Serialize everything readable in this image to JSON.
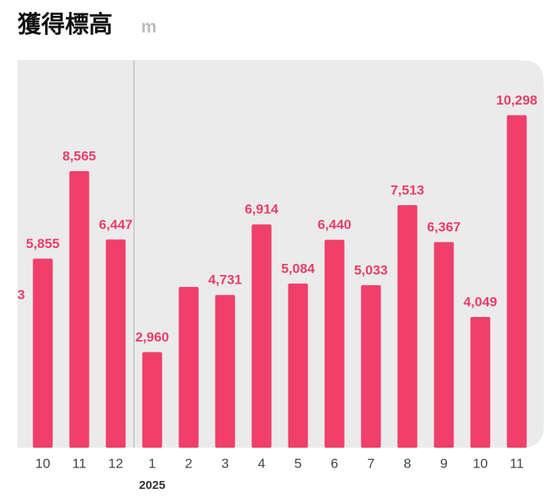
{
  "chart_data": {
    "type": "bar",
    "title": "獲得標高",
    "unit": "m",
    "categories": [
      "10",
      "11",
      "12",
      "1",
      "2",
      "3",
      "4",
      "5",
      "6",
      "7",
      "8",
      "9",
      "10",
      "11"
    ],
    "x_sublabels": [
      null,
      null,
      null,
      "2025",
      null,
      null,
      null,
      null,
      null,
      null,
      null,
      null,
      null,
      null
    ],
    "values": [
      5855,
      8565,
      6447,
      2960,
      4980,
      4731,
      6914,
      5084,
      6440,
      5033,
      7513,
      6367,
      4049,
      10298
    ],
    "value_labels": [
      "5,855",
      "8,565",
      "6,447",
      "2,960",
      null,
      "4,731",
      "6,914",
      "5,084",
      "6,440",
      "5,033",
      "7,513",
      "6,367",
      "4,049",
      "10,298"
    ],
    "annotations": [
      "3"
    ],
    "color": "#ef3f6a",
    "ylim": [
      0,
      12000
    ]
  }
}
